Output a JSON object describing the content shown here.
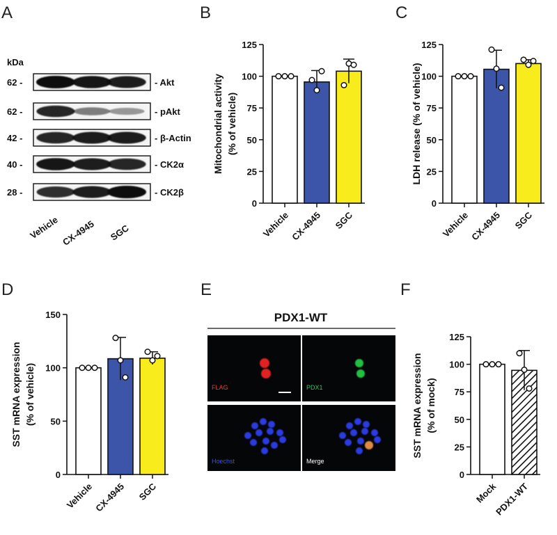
{
  "panels": {
    "A": {
      "letter": "A",
      "kda_label": "kDa",
      "bands": [
        {
          "mw": "62 -",
          "label": "- Akt",
          "intensity": [
            1.0,
            0.95,
            0.9
          ]
        },
        {
          "mw": "62 -",
          "label": "- pAkt",
          "intensity": [
            0.85,
            0.35,
            0.2
          ]
        },
        {
          "mw": "42 -",
          "label": "- β-Actin",
          "intensity": [
            0.85,
            0.9,
            0.9
          ]
        },
        {
          "mw": "40 -",
          "label": "- CK2α",
          "intensity": [
            0.95,
            0.9,
            0.85
          ]
        },
        {
          "mw": "28 -",
          "label": "- CK2β",
          "intensity": [
            0.8,
            0.9,
            1.0
          ]
        }
      ],
      "lanes": [
        "Vehicle",
        "CX-4945",
        "SGC"
      ]
    },
    "B": {
      "letter": "B"
    },
    "C": {
      "letter": "C"
    },
    "D": {
      "letter": "D"
    },
    "E": {
      "letter": "E",
      "title": "PDX1-WT",
      "images": [
        {
          "label": "FLAG",
          "color": "#ff3030"
        },
        {
          "label": "PDX1",
          "color": "#2ecc55"
        },
        {
          "label": "Hoechst",
          "color": "#3a4cff"
        },
        {
          "label": "Merge",
          "color": "#ffffff"
        }
      ]
    },
    "F": {
      "letter": "F"
    }
  },
  "colors": {
    "white_bar": "#ffffff",
    "blue_bar": "#3d55a8",
    "yellow_bar": "#f8ec1c",
    "stroke": "#111111"
  },
  "chart_data": [
    {
      "id": "B",
      "type": "bar",
      "categories": [
        "Vehicle",
        "CX-4945",
        "SGC"
      ],
      "values": [
        100,
        95.5,
        104
      ],
      "errors": [
        0,
        9,
        9.5
      ],
      "points": [
        [
          100,
          100,
          100
        ],
        [
          97,
          89,
          104
        ],
        [
          93,
          110,
          109
        ]
      ],
      "fills": [
        "white",
        "blue",
        "yellow"
      ],
      "ylabel": [
        "Mitochondrial activity",
        "(% of vehicle)"
      ],
      "ylim": [
        0,
        125
      ],
      "yticks": [
        0,
        25,
        50,
        75,
        100,
        125
      ]
    },
    {
      "id": "C",
      "type": "bar",
      "categories": [
        "Vehicle",
        "CX-4945",
        "SGC"
      ],
      "values": [
        100,
        105.5,
        110
      ],
      "errors": [
        0,
        15,
        3
      ],
      "points": [
        [
          100,
          100,
          100
        ],
        [
          121,
          106,
          91
        ],
        [
          113,
          109,
          112
        ]
      ],
      "fills": [
        "white",
        "blue",
        "yellow"
      ],
      "ylabel": [
        "LDH release (% of vehicle)"
      ],
      "ylim": [
        0,
        125
      ],
      "yticks": [
        0,
        25,
        50,
        75,
        100,
        125
      ]
    },
    {
      "id": "D",
      "type": "bar",
      "categories": [
        "Vehicle",
        "CX-4945",
        "SGC"
      ],
      "values": [
        100,
        108.5,
        109
      ],
      "errors": [
        0,
        20,
        6
      ],
      "points": [
        [
          100,
          100,
          100
        ],
        [
          128,
          107,
          91
        ],
        [
          115,
          107,
          111
        ]
      ],
      "fills": [
        "white",
        "blue",
        "yellow"
      ],
      "ylabel": [
        "SST mRNA expression",
        "(% of vehicle)"
      ],
      "ylim": [
        0,
        150
      ],
      "yticks": [
        0,
        50,
        100,
        150
      ]
    },
    {
      "id": "F",
      "type": "bar",
      "categories": [
        "Mock",
        "PDX1-WT"
      ],
      "values": [
        100,
        94.5
      ],
      "errors": [
        0,
        18
      ],
      "points": [
        [
          100,
          100,
          100
        ],
        [
          110,
          95,
          78
        ]
      ],
      "fills": [
        "white",
        "hatched"
      ],
      "ylabel": [
        "SST mRNA expression",
        "(% of mock)"
      ],
      "ylim": [
        0,
        125
      ],
      "yticks": [
        0,
        25,
        50,
        75,
        100,
        125
      ]
    }
  ]
}
